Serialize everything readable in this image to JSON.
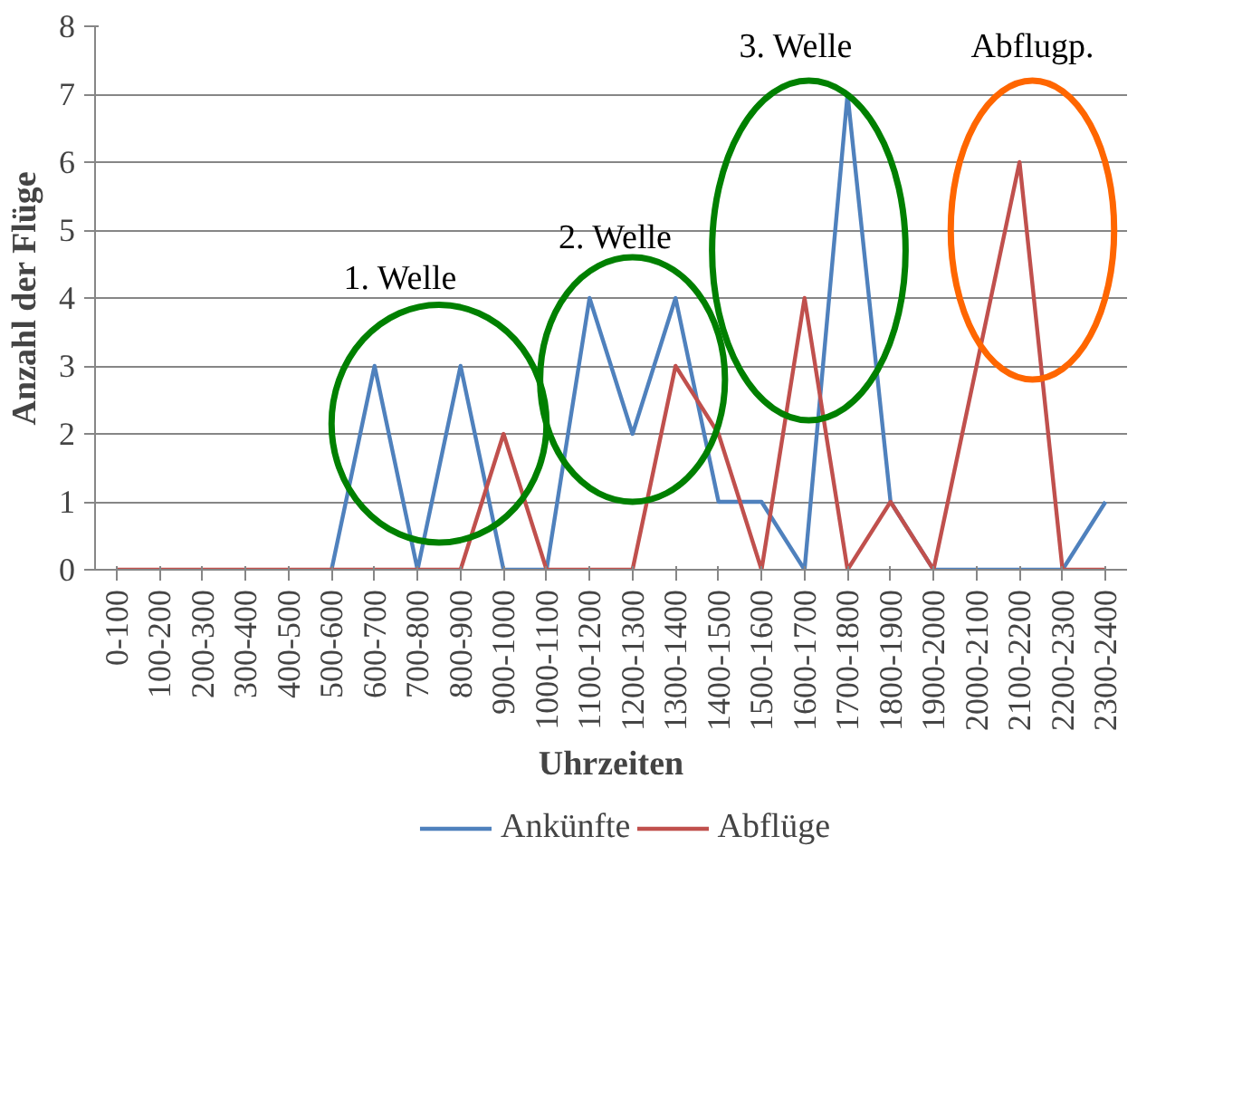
{
  "chart_data": {
    "type": "line",
    "xlabel": "Uhrzeiten",
    "ylabel": "Anzahl der Flüge",
    "categories": [
      "0-100",
      "100-200",
      "200-300",
      "300-400",
      "400-500",
      "500-600",
      "600-700",
      "700-800",
      "800-900",
      "900-1000",
      "1000-1100",
      "1100-1200",
      "1200-1300",
      "1300-1400",
      "1400-1500",
      "1500-1600",
      "1600-1700",
      "1700-1800",
      "1800-1900",
      "1900-2000",
      "2000-2100",
      "2100-2200",
      "2200-2300",
      "2300-2400"
    ],
    "series": [
      {
        "name": "Ankünfte",
        "color": "#4f81bd",
        "values": [
          null,
          null,
          null,
          null,
          null,
          0,
          3,
          0,
          3,
          0,
          0,
          4,
          2,
          4,
          1,
          1,
          0,
          7,
          1,
          0,
          0,
          0,
          0,
          1
        ]
      },
      {
        "name": "Abflüge",
        "color": "#c0504d",
        "values": [
          0,
          0,
          0,
          0,
          0,
          0,
          0,
          0,
          0,
          2,
          0,
          0,
          0,
          3,
          2,
          0,
          4,
          0,
          1,
          0,
          3,
          6,
          0,
          0
        ]
      }
    ],
    "ylim": [
      0,
      8
    ],
    "yticks": [
      0,
      1,
      2,
      3,
      4,
      5,
      6,
      7,
      8
    ],
    "grid": "y",
    "legend": "bottom",
    "marker": "none",
    "line_style": "solid",
    "annotations": [
      "1. Welle",
      "2. Welle",
      "3. Welle",
      "Abflugp."
    ]
  }
}
